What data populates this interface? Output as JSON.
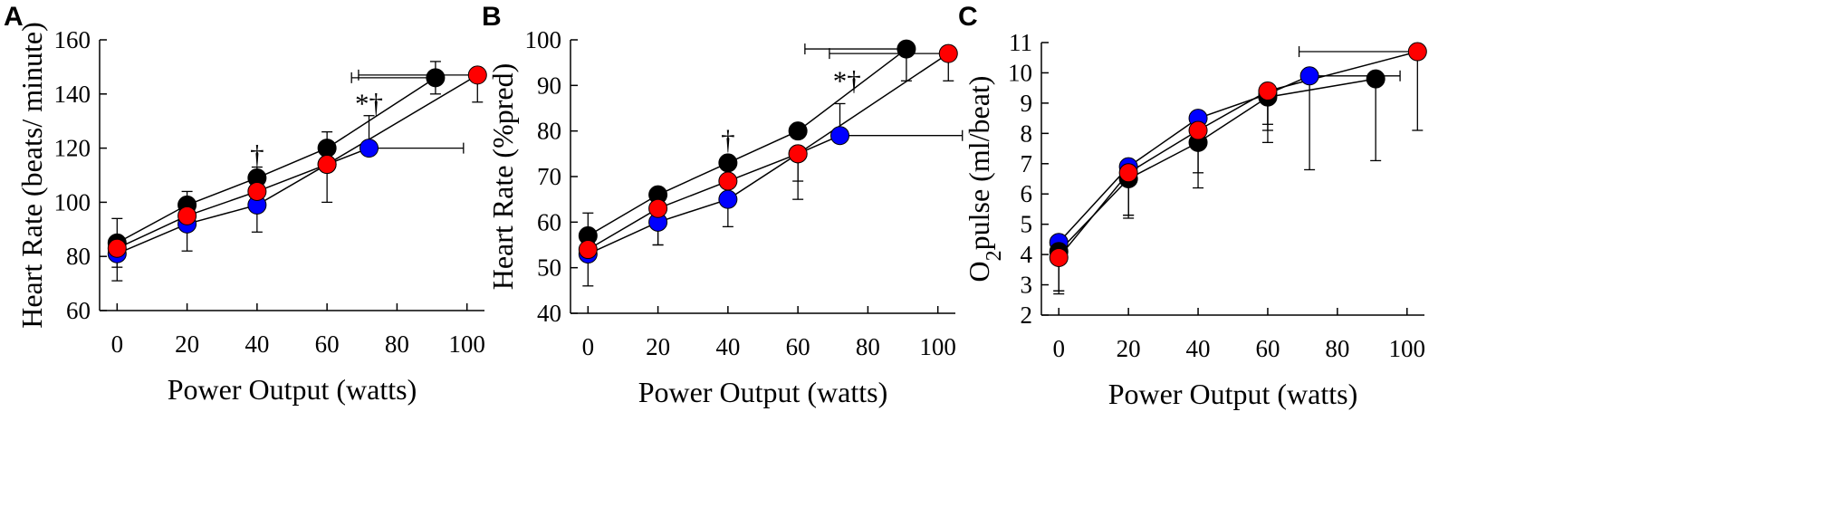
{
  "chart_data": [
    {
      "panel_letter": "A",
      "type": "line",
      "xlabel": "Power Output (watts)",
      "ylabel": "Heart Rate (beats/ minute)",
      "xlim": [
        -5,
        105
      ],
      "ylim": [
        60,
        160
      ],
      "x_ticks": [
        0,
        20,
        40,
        60,
        80,
        100
      ],
      "y_ticks": [
        60,
        80,
        100,
        120,
        140,
        160
      ],
      "series": [
        {
          "name": "black",
          "color": "#000000",
          "x": [
            0,
            20,
            40,
            60,
            91
          ],
          "y": [
            85,
            99,
            109,
            120,
            146
          ],
          "err_up": [
            9,
            5,
            4,
            6,
            6
          ],
          "err_down": [
            9,
            5,
            4,
            6,
            6
          ],
          "xerr": [
            0,
            0,
            0,
            0,
            24
          ]
        },
        {
          "name": "red",
          "color": "#ff0000",
          "x": [
            0,
            20,
            40,
            60,
            103
          ],
          "y": [
            83,
            95,
            104,
            114,
            147
          ],
          "err_up": [
            0,
            0,
            0,
            0,
            0
          ],
          "err_down": [
            0,
            0,
            0,
            0,
            10
          ],
          "xerr": [
            0,
            0,
            0,
            0,
            34
          ]
        },
        {
          "name": "blue",
          "color": "#0000ff",
          "x": [
            0,
            20,
            40,
            60,
            72
          ],
          "y": [
            81,
            92,
            99,
            114,
            120
          ],
          "err_up": [
            0,
            0,
            0,
            0,
            12
          ],
          "err_down": [
            10,
            10,
            10,
            14,
            0
          ],
          "xerr": [
            0,
            0,
            0,
            0,
            27
          ]
        }
      ],
      "annotations": [
        {
          "text": "†",
          "x": 40,
          "y": 114
        },
        {
          "text": "*†",
          "x": 72,
          "y": 133
        }
      ]
    },
    {
      "panel_letter": "B",
      "type": "line",
      "xlabel": "Power Output (watts)",
      "ylabel": "Heart Rate (%pred)",
      "xlim": [
        -5,
        105
      ],
      "ylim": [
        40,
        100
      ],
      "x_ticks": [
        0,
        20,
        40,
        60,
        80,
        100
      ],
      "y_ticks": [
        40,
        50,
        60,
        70,
        80,
        90,
        100
      ],
      "series": [
        {
          "name": "black",
          "color": "#000000",
          "x": [
            0,
            20,
            40,
            60,
            91
          ],
          "y": [
            57,
            66,
            73,
            80,
            98
          ],
          "err_up": [
            5,
            0,
            0,
            0,
            0
          ],
          "err_down": [
            5,
            11,
            0,
            0,
            7
          ],
          "xerr": [
            0,
            0,
            0,
            0,
            29
          ]
        },
        {
          "name": "red",
          "color": "#ff0000",
          "x": [
            0,
            20,
            40,
            60,
            103
          ],
          "y": [
            54,
            63,
            69,
            75,
            97
          ],
          "err_up": [
            0,
            0,
            0,
            0,
            0
          ],
          "err_down": [
            0,
            0,
            0,
            10,
            6
          ],
          "xerr": [
            0,
            0,
            0,
            0,
            34
          ]
        },
        {
          "name": "blue",
          "color": "#0000ff",
          "x": [
            0,
            20,
            40,
            60,
            72
          ],
          "y": [
            53,
            60,
            65,
            75,
            79
          ],
          "err_up": [
            0,
            0,
            0,
            0,
            7
          ],
          "err_down": [
            7,
            5,
            6,
            6,
            0
          ],
          "xerr": [
            0,
            0,
            0,
            0,
            35
          ]
        }
      ],
      "annotations": [
        {
          "text": "†",
          "x": 40,
          "y": 76
        },
        {
          "text": "*†",
          "x": 74,
          "y": 89
        }
      ]
    },
    {
      "panel_letter": "C",
      "type": "line",
      "xlabel": "Power Output (watts)",
      "ylabel": "O2pulse (ml/beat)",
      "ylabel_main": "O",
      "ylabel_sub": "2",
      "ylabel_rest": "pulse (ml/beat)",
      "xlim": [
        -5,
        105
      ],
      "ylim": [
        2,
        11
      ],
      "x_ticks": [
        0,
        20,
        40,
        60,
        80,
        100
      ],
      "y_ticks": [
        2,
        3,
        4,
        5,
        6,
        7,
        8,
        9,
        10,
        11
      ],
      "series": [
        {
          "name": "black",
          "color": "#000000",
          "x": [
            0,
            20,
            40,
            60,
            91
          ],
          "y": [
            4.1,
            6.5,
            7.7,
            9.2,
            9.8
          ],
          "err_up": [
            0,
            0,
            0,
            0,
            0
          ],
          "err_down": [
            1.4,
            1.3,
            1.5,
            1.5,
            2.7
          ],
          "xerr": [
            0,
            0,
            0,
            0,
            0
          ]
        },
        {
          "name": "red",
          "color": "#ff0000",
          "x": [
            0,
            20,
            40,
            60,
            103
          ],
          "y": [
            3.9,
            6.7,
            8.1,
            9.4,
            10.7
          ],
          "err_up": [
            0,
            0,
            0,
            0,
            0
          ],
          "err_down": [
            1.1,
            1.4,
            1.4,
            1.3,
            2.6
          ],
          "xerr": [
            0,
            0,
            0,
            0,
            34
          ]
        },
        {
          "name": "blue",
          "color": "#0000ff",
          "x": [
            0,
            20,
            40,
            60,
            72
          ],
          "y": [
            4.4,
            6.9,
            8.5,
            9.3,
            9.9
          ],
          "err_up": [
            0,
            0,
            0,
            0,
            0
          ],
          "err_down": [
            1.6,
            1.6,
            1.0,
            1.0,
            3.1
          ],
          "xerr": [
            0,
            0,
            0,
            0,
            26
          ]
        }
      ],
      "annotations": []
    }
  ]
}
